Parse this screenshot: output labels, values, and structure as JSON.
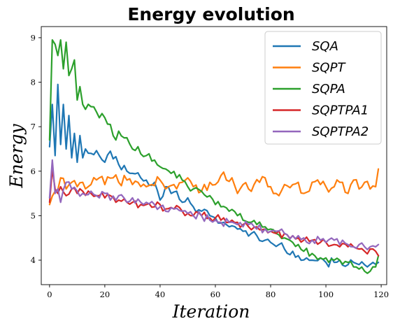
{
  "chart_data": {
    "type": "line",
    "title": "Energy evolution",
    "xlabel": "Iteration",
    "ylabel": "Energy",
    "xlim": [
      -3,
      122
    ],
    "ylim": [
      3.45,
      9.25
    ],
    "xticks": [
      0,
      20,
      40,
      60,
      80,
      100,
      120
    ],
    "yticks": [
      4,
      5,
      6,
      7,
      8,
      9
    ],
    "grid": false,
    "legend_position": "top-right",
    "series": [
      {
        "name": "SQA",
        "color": "#1f77b4",
        "anchors": [
          [
            0,
            6.55
          ],
          [
            1,
            7.5
          ],
          [
            2,
            6.35
          ],
          [
            3,
            7.95
          ],
          [
            4,
            6.6
          ],
          [
            5,
            7.5
          ],
          [
            6,
            6.5
          ],
          [
            7,
            7.25
          ],
          [
            8,
            6.3
          ],
          [
            9,
            6.85
          ],
          [
            10,
            6.2
          ],
          [
            11,
            6.8
          ],
          [
            12,
            6.3
          ],
          [
            13,
            6.5
          ],
          [
            15,
            6.4
          ],
          [
            18,
            6.35
          ],
          [
            20,
            6.2
          ],
          [
            22,
            6.45
          ],
          [
            25,
            6.15
          ],
          [
            28,
            6.0
          ],
          [
            30,
            5.95
          ],
          [
            33,
            5.85
          ],
          [
            35,
            5.8
          ],
          [
            38,
            5.75
          ],
          [
            40,
            5.35
          ],
          [
            42,
            5.65
          ],
          [
            44,
            5.5
          ],
          [
            46,
            5.55
          ],
          [
            48,
            5.3
          ],
          [
            50,
            5.4
          ],
          [
            52,
            5.2
          ],
          [
            55,
            5.1
          ],
          [
            58,
            5.0
          ],
          [
            60,
            4.95
          ],
          [
            63,
            4.85
          ],
          [
            65,
            4.75
          ],
          [
            68,
            4.7
          ],
          [
            70,
            4.65
          ],
          [
            73,
            4.6
          ],
          [
            75,
            4.55
          ],
          [
            78,
            4.45
          ],
          [
            80,
            4.4
          ],
          [
            83,
            4.35
          ],
          [
            85,
            4.25
          ],
          [
            88,
            4.2
          ],
          [
            90,
            4.1
          ],
          [
            93,
            4.05
          ],
          [
            95,
            4.0
          ],
          [
            98,
            4.05
          ],
          [
            100,
            3.95
          ],
          [
            103,
            3.95
          ],
          [
            105,
            4.0
          ],
          [
            108,
            3.9
          ],
          [
            110,
            3.95
          ],
          [
            112,
            3.9
          ],
          [
            115,
            3.85
          ],
          [
            117,
            3.95
          ],
          [
            119,
            3.95
          ]
        ],
        "noise": 0.1
      },
      {
        "name": "SQPT",
        "color": "#ff7f0e",
        "anchors": [
          [
            0,
            5.25
          ],
          [
            2,
            5.55
          ],
          [
            4,
            5.85
          ],
          [
            6,
            5.6
          ],
          [
            8,
            5.75
          ],
          [
            10,
            5.65
          ],
          [
            12,
            5.75
          ],
          [
            15,
            5.7
          ],
          [
            18,
            5.85
          ],
          [
            20,
            5.7
          ],
          [
            23,
            5.85
          ],
          [
            25,
            5.75
          ],
          [
            28,
            5.8
          ],
          [
            30,
            5.7
          ],
          [
            32,
            5.75
          ],
          [
            35,
            5.65
          ],
          [
            37,
            5.7
          ],
          [
            40,
            5.8
          ],
          [
            42,
            5.6
          ],
          [
            45,
            5.7
          ],
          [
            48,
            5.75
          ],
          [
            50,
            5.85
          ],
          [
            52,
            5.65
          ],
          [
            55,
            5.55
          ],
          [
            58,
            5.75
          ],
          [
            60,
            5.7
          ],
          [
            62,
            5.9
          ],
          [
            64,
            5.8
          ],
          [
            66,
            5.85
          ],
          [
            68,
            5.5
          ],
          [
            70,
            5.7
          ],
          [
            72,
            5.6
          ],
          [
            74,
            5.7
          ],
          [
            76,
            5.75
          ],
          [
            78,
            5.85
          ],
          [
            80,
            5.65
          ],
          [
            82,
            5.5
          ],
          [
            85,
            5.7
          ],
          [
            88,
            5.7
          ],
          [
            90,
            5.75
          ],
          [
            92,
            5.5
          ],
          [
            95,
            5.75
          ],
          [
            98,
            5.7
          ],
          [
            100,
            5.65
          ],
          [
            103,
            5.65
          ],
          [
            106,
            5.75
          ],
          [
            108,
            5.5
          ],
          [
            110,
            5.8
          ],
          [
            112,
            5.6
          ],
          [
            114,
            5.75
          ],
          [
            116,
            5.6
          ],
          [
            118,
            5.65
          ],
          [
            119,
            6.05
          ]
        ],
        "noise": 0.13
      },
      {
        "name": "SQPA",
        "color": "#2ca02c",
        "anchors": [
          [
            0,
            6.7
          ],
          [
            1,
            8.95
          ],
          [
            2,
            8.85
          ],
          [
            3,
            8.6
          ],
          [
            4,
            8.95
          ],
          [
            5,
            8.3
          ],
          [
            6,
            8.9
          ],
          [
            7,
            8.15
          ],
          [
            8,
            8.3
          ],
          [
            9,
            8.5
          ],
          [
            10,
            7.6
          ],
          [
            11,
            7.9
          ],
          [
            12,
            7.5
          ],
          [
            15,
            7.45
          ],
          [
            18,
            7.2
          ],
          [
            20,
            7.2
          ],
          [
            22,
            7.05
          ],
          [
            24,
            6.7
          ],
          [
            25,
            6.9
          ],
          [
            27,
            6.75
          ],
          [
            30,
            6.5
          ],
          [
            32,
            6.55
          ],
          [
            35,
            6.35
          ],
          [
            38,
            6.25
          ],
          [
            40,
            6.1
          ],
          [
            42,
            6.05
          ],
          [
            44,
            5.95
          ],
          [
            46,
            5.85
          ],
          [
            48,
            5.8
          ],
          [
            50,
            5.65
          ],
          [
            52,
            5.6
          ],
          [
            55,
            5.55
          ],
          [
            58,
            5.45
          ],
          [
            60,
            5.25
          ],
          [
            62,
            5.2
          ],
          [
            65,
            5.1
          ],
          [
            68,
            5.0
          ],
          [
            70,
            4.9
          ],
          [
            72,
            4.85
          ],
          [
            75,
            4.8
          ],
          [
            78,
            4.75
          ],
          [
            80,
            4.7
          ],
          [
            82,
            4.6
          ],
          [
            85,
            4.5
          ],
          [
            88,
            4.4
          ],
          [
            90,
            4.35
          ],
          [
            92,
            4.2
          ],
          [
            95,
            4.15
          ],
          [
            98,
            4.05
          ],
          [
            100,
            4.05
          ],
          [
            103,
            4.0
          ],
          [
            105,
            4.0
          ],
          [
            108,
            3.95
          ],
          [
            110,
            3.85
          ],
          [
            112,
            3.8
          ],
          [
            114,
            3.75
          ],
          [
            116,
            3.75
          ],
          [
            118,
            3.85
          ],
          [
            119,
            4.1
          ]
        ],
        "noise": 0.1
      },
      {
        "name": "SQPTPA1",
        "color": "#d62728",
        "anchors": [
          [
            0,
            5.3
          ],
          [
            1,
            6.05
          ],
          [
            2,
            5.6
          ],
          [
            3,
            5.5
          ],
          [
            4,
            5.65
          ],
          [
            6,
            5.45
          ],
          [
            8,
            5.6
          ],
          [
            10,
            5.5
          ],
          [
            12,
            5.55
          ],
          [
            15,
            5.5
          ],
          [
            18,
            5.45
          ],
          [
            20,
            5.4
          ],
          [
            22,
            5.45
          ],
          [
            25,
            5.35
          ],
          [
            28,
            5.3
          ],
          [
            30,
            5.3
          ],
          [
            33,
            5.25
          ],
          [
            35,
            5.25
          ],
          [
            38,
            5.2
          ],
          [
            40,
            5.25
          ],
          [
            42,
            5.15
          ],
          [
            45,
            5.15
          ],
          [
            48,
            5.1
          ],
          [
            50,
            5.05
          ],
          [
            52,
            5.0
          ],
          [
            55,
            5.0
          ],
          [
            58,
            4.95
          ],
          [
            60,
            4.95
          ],
          [
            62,
            4.9
          ],
          [
            65,
            4.85
          ],
          [
            68,
            4.85
          ],
          [
            70,
            4.8
          ],
          [
            72,
            4.75
          ],
          [
            75,
            4.75
          ],
          [
            78,
            4.7
          ],
          [
            80,
            4.65
          ],
          [
            82,
            4.6
          ],
          [
            85,
            4.6
          ],
          [
            88,
            4.55
          ],
          [
            90,
            4.5
          ],
          [
            92,
            4.45
          ],
          [
            95,
            4.45
          ],
          [
            98,
            4.4
          ],
          [
            100,
            4.4
          ],
          [
            103,
            4.35
          ],
          [
            105,
            4.3
          ],
          [
            108,
            4.3
          ],
          [
            110,
            4.3
          ],
          [
            112,
            4.25
          ],
          [
            114,
            4.2
          ],
          [
            116,
            4.25
          ],
          [
            118,
            4.2
          ],
          [
            119,
            4.1
          ]
        ],
        "noise": 0.1
      },
      {
        "name": "SQPTPA2",
        "color": "#9467bd",
        "anchors": [
          [
            0,
            5.4
          ],
          [
            1,
            6.25
          ],
          [
            2,
            5.5
          ],
          [
            3,
            5.6
          ],
          [
            4,
            5.3
          ],
          [
            6,
            5.75
          ],
          [
            8,
            5.6
          ],
          [
            10,
            5.55
          ],
          [
            12,
            5.5
          ],
          [
            15,
            5.55
          ],
          [
            18,
            5.4
          ],
          [
            20,
            5.5
          ],
          [
            22,
            5.35
          ],
          [
            25,
            5.45
          ],
          [
            28,
            5.3
          ],
          [
            30,
            5.4
          ],
          [
            33,
            5.3
          ],
          [
            35,
            5.3
          ],
          [
            38,
            5.25
          ],
          [
            40,
            5.2
          ],
          [
            42,
            5.1
          ],
          [
            45,
            5.15
          ],
          [
            48,
            5.1
          ],
          [
            50,
            5.05
          ],
          [
            52,
            5.0
          ],
          [
            55,
            5.0
          ],
          [
            58,
            4.9
          ],
          [
            60,
            4.9
          ],
          [
            62,
            4.85
          ],
          [
            65,
            4.85
          ],
          [
            68,
            4.8
          ],
          [
            70,
            4.75
          ],
          [
            72,
            4.8
          ],
          [
            75,
            4.7
          ],
          [
            78,
            4.7
          ],
          [
            80,
            4.65
          ],
          [
            82,
            4.65
          ],
          [
            85,
            4.6
          ],
          [
            88,
            4.55
          ],
          [
            90,
            4.55
          ],
          [
            92,
            4.5
          ],
          [
            95,
            4.45
          ],
          [
            98,
            4.45
          ],
          [
            100,
            4.4
          ],
          [
            103,
            4.45
          ],
          [
            105,
            4.35
          ],
          [
            108,
            4.35
          ],
          [
            110,
            4.3
          ],
          [
            112,
            4.35
          ],
          [
            114,
            4.3
          ],
          [
            116,
            4.3
          ],
          [
            118,
            4.3
          ],
          [
            119,
            4.35
          ]
        ],
        "noise": 0.1
      }
    ]
  }
}
